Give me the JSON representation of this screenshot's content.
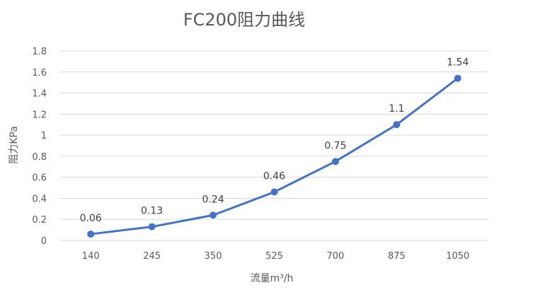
{
  "chart_data": {
    "type": "line",
    "title": "FC200阻力曲线",
    "xlabel": "流量m³/h",
    "ylabel": "阻力KPa",
    "categories": [
      "140",
      "245",
      "350",
      "525",
      "700",
      "875",
      "1050"
    ],
    "series": [
      {
        "name": "阻力",
        "values": [
          0.06,
          0.13,
          0.24,
          0.46,
          0.75,
          1.1,
          1.54
        ],
        "color": "#4472C4"
      }
    ],
    "data_labels": [
      "0.06",
      "0.13",
      "0.24",
      "0.46",
      "0.75",
      "1.1",
      "1.54"
    ],
    "yticks": [
      "0",
      "0.2",
      "0.4",
      "0.6",
      "0.8",
      "1",
      "1.2",
      "1.4",
      "1.6",
      "1.8"
    ],
    "ylim": [
      0,
      1.8
    ],
    "grid": true,
    "legend": "none"
  },
  "colors": {
    "line": "#4472C4",
    "grid": "#D9D9D9",
    "text": "#595959"
  }
}
